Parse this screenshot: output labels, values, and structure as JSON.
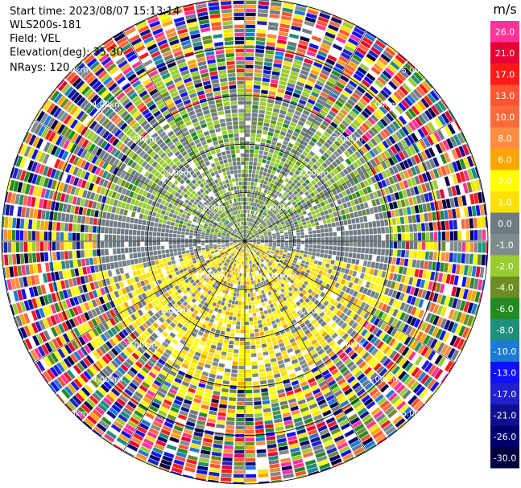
{
  "header": {
    "start_time": "Start time: 2023/08/07 15:13:14",
    "instrument": "WLS200s-181",
    "field": "Field: VEL",
    "elevation": "Elevation(deg): 35.30",
    "nrays": "NRays: 120"
  },
  "chart_data": {
    "type": "heatmap",
    "projection": "polar (PPI scan)",
    "field": "VEL",
    "units": "m/s",
    "nrays": 120,
    "range_rings_km": [
      "1.00km",
      "2.00km",
      "3.00km",
      "4.00km",
      "5.00km"
    ],
    "range_max_km": 5.0,
    "colorbar": {
      "title": "m/s",
      "bins": [
        {
          "label": "26.0",
          "color": "#ff3399"
        },
        {
          "label": "21.0",
          "color": "#e60033"
        },
        {
          "label": "17.0",
          "color": "#ff1a1a"
        },
        {
          "label": "13.0",
          "color": "#ff5533"
        },
        {
          "label": "10.0",
          "color": "#ff6a3d"
        },
        {
          "label": "8.0",
          "color": "#ff8c40"
        },
        {
          "label": "6.0",
          "color": "#ffa500"
        },
        {
          "label": "2.0",
          "color": "#ffff00"
        },
        {
          "label": "1.0",
          "color": "#ffe100"
        },
        {
          "label": "0.0",
          "color": "#6e7b83"
        },
        {
          "label": "-1.0",
          "color": "#7f8c8d"
        },
        {
          "label": "-2.0",
          "color": "#9acd32"
        },
        {
          "label": "-4.0",
          "color": "#6b8e23"
        },
        {
          "label": "-6.0",
          "color": "#228b22"
        },
        {
          "label": "-8.0",
          "color": "#1e8f7a"
        },
        {
          "label": "-10.0",
          "color": "#1e7ad6"
        },
        {
          "label": "-13.0",
          "color": "#1010ff"
        },
        {
          "label": "-17.0",
          "color": "#2020cc"
        },
        {
          "label": "-21.0",
          "color": "#10108f"
        },
        {
          "label": "-26.0",
          "color": "#000070"
        },
        {
          "label": "-30.0",
          "color": "#000040"
        }
      ]
    },
    "description": "Low-elevation velocity field near radar: mostly near-zero (grey), negative (green) to the north, positive (yellow) to the south; outer ranges noisy with random-coloured gates."
  }
}
